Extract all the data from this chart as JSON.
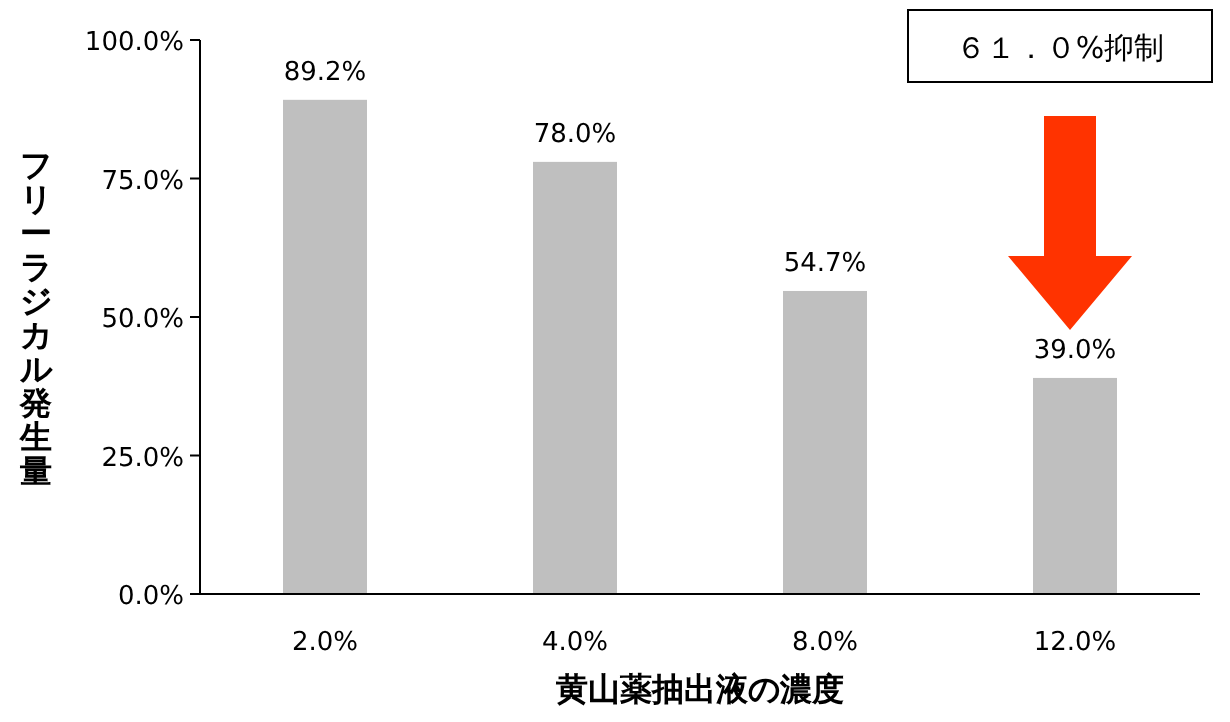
{
  "chart_data": {
    "type": "bar",
    "xlabel": "黄山薬抽出液の濃度",
    "ylabel": "フリーラジカル発生量",
    "categories": [
      "2.0%",
      "4.0%",
      "8.0%",
      "12.0%"
    ],
    "values": [
      89.2,
      78.0,
      54.7,
      39.0
    ],
    "value_labels": [
      "89.2%",
      "78.0%",
      "54.7%",
      "39.0%"
    ],
    "color": "#bfbfbf",
    "ylim": [
      0,
      100
    ],
    "yticks": [
      {
        "value": 0,
        "label": "0.0%"
      },
      {
        "value": 25,
        "label": "25.0%"
      },
      {
        "value": 50,
        "label": "50.0%"
      },
      {
        "value": 75,
        "label": "75.0%"
      },
      {
        "value": 100,
        "label": "100.0%"
      }
    ],
    "annotations": [
      "６１．０%抑制"
    ],
    "grid": false
  }
}
